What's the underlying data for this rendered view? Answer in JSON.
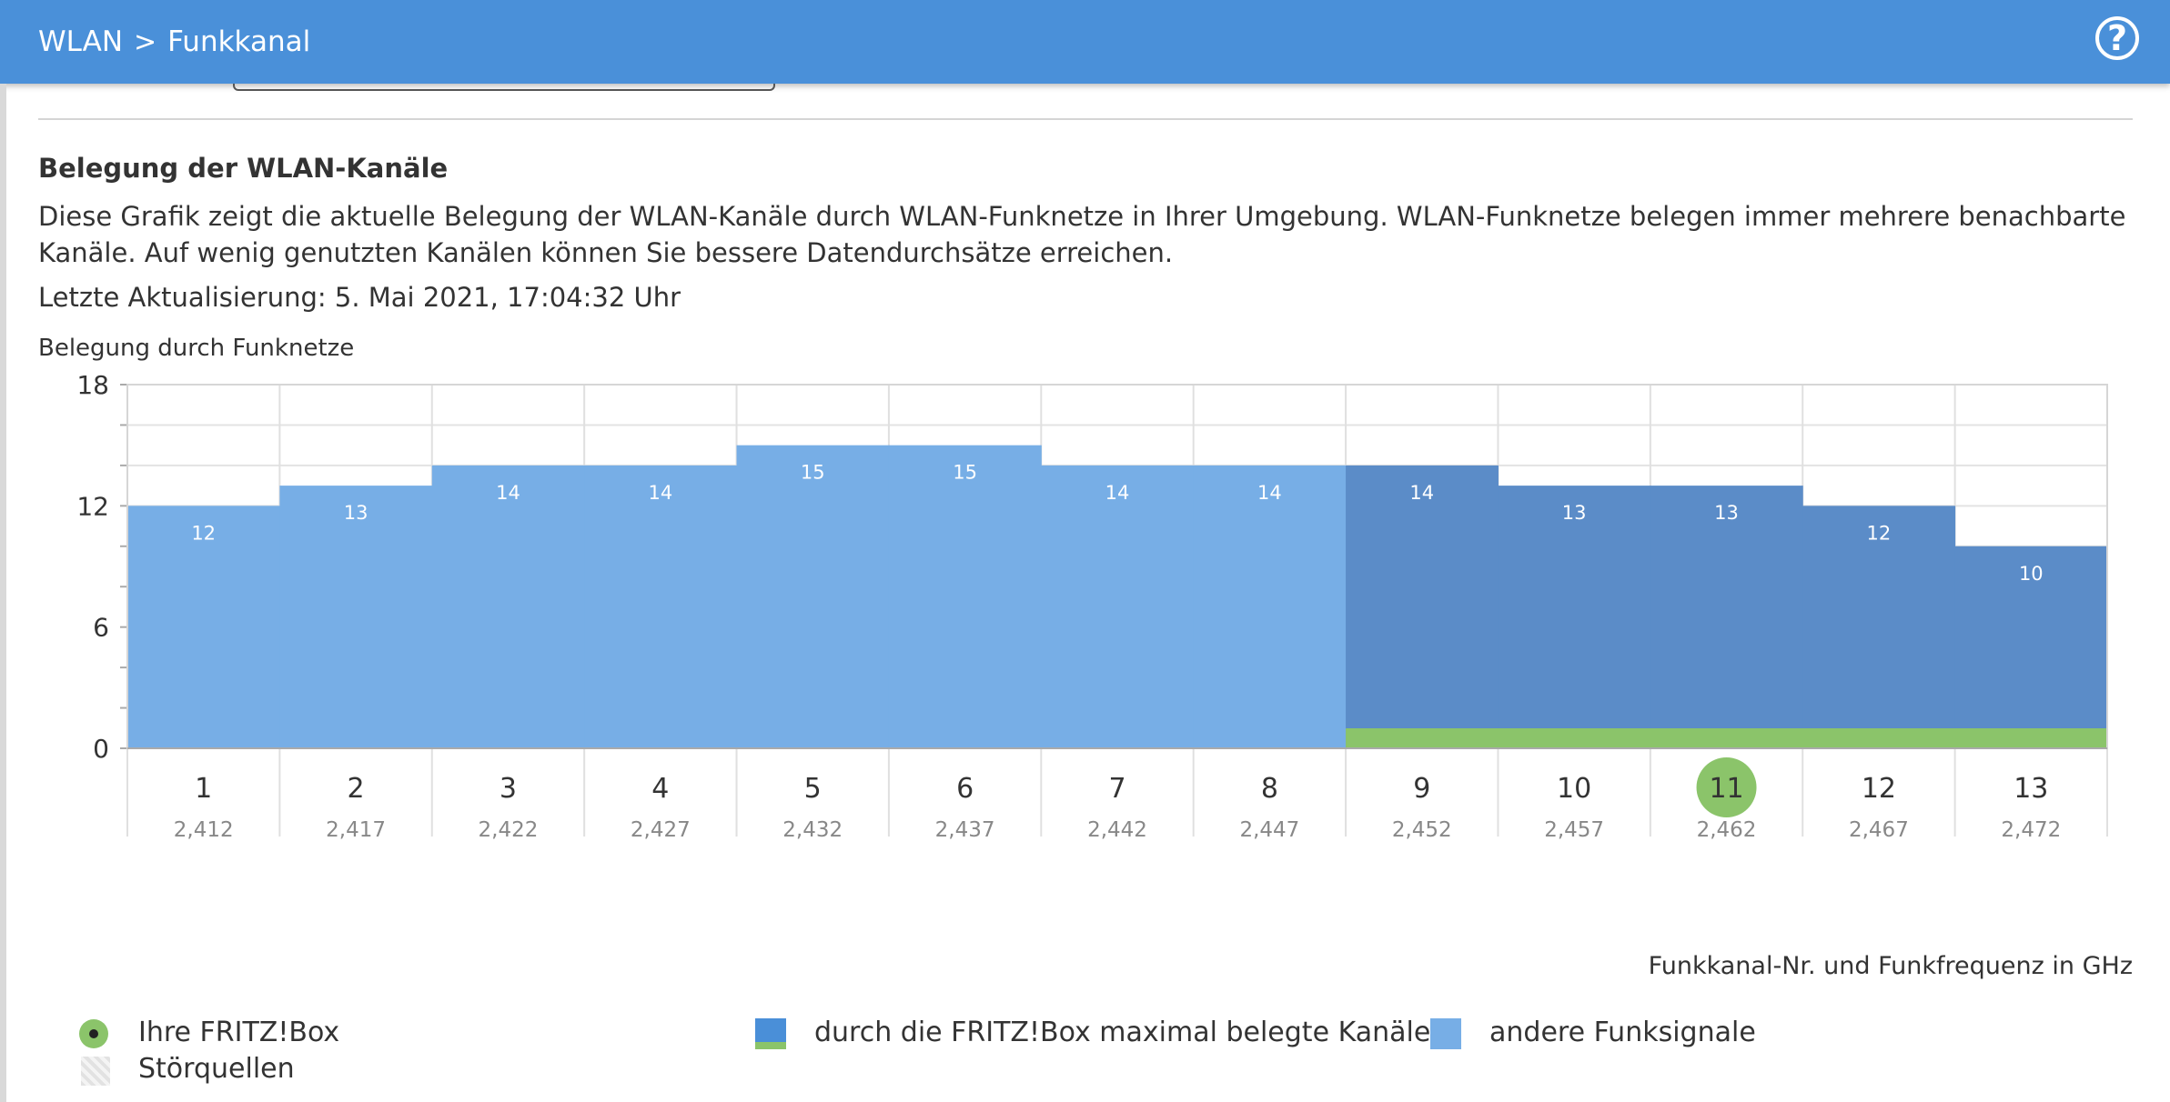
{
  "header": {
    "breadcrumb_parent": "WLAN",
    "breadcrumb_separator": ">",
    "breadcrumb_current": "Funkkanal",
    "help_icon_label": "?"
  },
  "section": {
    "title": "Belegung der WLAN-Kanäle",
    "description": "Diese Grafik zeigt die aktuelle Belegung der WLAN-Kanäle durch WLAN-Funknetze in Ihrer Umgebung. WLAN-Funknetze belegen immer mehrere benachbarte Kanäle. Auf wenig genutzten Kanälen können Sie bessere Datendurchsätze erreichen.",
    "last_update": "Letzte Aktualisierung: 5. Mai 2021, 17:04:32 Uhr"
  },
  "chart_data": {
    "type": "bar",
    "ylabel": "Belegung durch Funknetze",
    "xlabel": "Funkkanal-Nr. und Funkfrequenz in GHz",
    "ylim": [
      0,
      18
    ],
    "yticks": [
      "0",
      "6",
      "12",
      "18"
    ],
    "categories": [
      "1",
      "2",
      "3",
      "4",
      "5",
      "6",
      "7",
      "8",
      "9",
      "10",
      "11",
      "12",
      "13"
    ],
    "frequencies": [
      "2,412",
      "2,417",
      "2,422",
      "2,427",
      "2,432",
      "2,437",
      "2,442",
      "2,447",
      "2,452",
      "2,457",
      "2,462",
      "2,467",
      "2,472"
    ],
    "values": [
      12,
      13,
      14,
      14,
      15,
      15,
      14,
      14,
      14,
      13,
      13,
      12,
      10
    ],
    "fritzbox_occupied_channels": [
      "9",
      "10",
      "11",
      "12",
      "13"
    ],
    "fritzbox_channel": "11",
    "colors": {
      "other": "#77aee6",
      "fritzbox": "#5b8cc8",
      "fritzbox_bar": "#8bc46a",
      "grid": "#e3e3e3"
    },
    "grid": true,
    "legend_position": "bottom"
  },
  "legend": {
    "own_fritzbox": "Ihre FRITZ!Box",
    "interference": "Störquellen",
    "fritzbox_channels": "durch die FRITZ!Box maximal belegte Kanäle",
    "other_signals": "andere Funksignale"
  }
}
